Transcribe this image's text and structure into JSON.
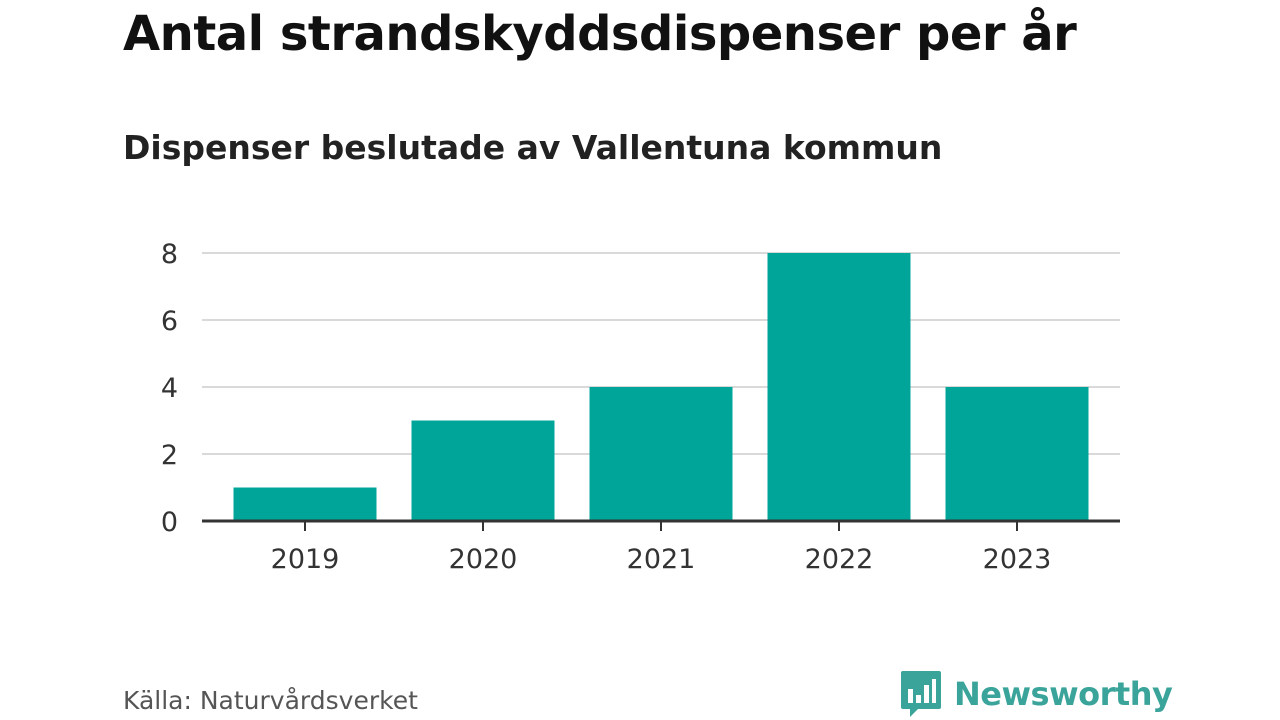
{
  "chart_data": {
    "type": "bar",
    "title": "Antal strandskyddsdispenser per år",
    "subtitle": "Dispenser beslutade av Vallentuna kommun",
    "categories": [
      "2019",
      "2020",
      "2021",
      "2022",
      "2023"
    ],
    "values": [
      1,
      3,
      4,
      8,
      4
    ],
    "xlabel": "",
    "ylabel": "",
    "ylim": [
      0,
      8
    ],
    "yticks": [
      0,
      2,
      4,
      6,
      8
    ],
    "grid": true,
    "bar_color": "#00a59a"
  },
  "source": "Källa: Naturvårdsverket",
  "brand": {
    "name": "Newsworthy",
    "icon": "newsworthy-logo-icon",
    "color": "#3aa49a"
  }
}
